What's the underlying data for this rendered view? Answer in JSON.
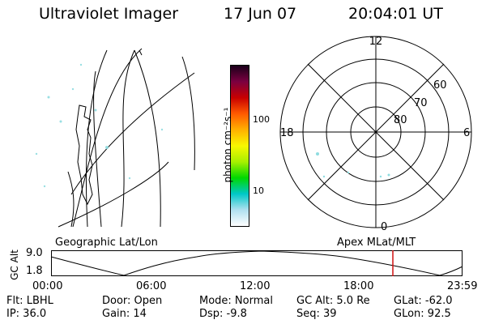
{
  "header": {
    "instrument": "Ultraviolet Imager",
    "date": "17 Jun 07",
    "time": "20:04:01 UT"
  },
  "geo_panel": {
    "label": "Geographic Lat/Lon"
  },
  "colorbar": {
    "unit_label": "photon cm⁻²s⁻¹",
    "ticks": [
      "100",
      "10"
    ],
    "colors": [
      "#1a001a",
      "#7b0040",
      "#c80000",
      "#ff5a00",
      "#ffb000",
      "#f8f800",
      "#a8f000",
      "#00d800",
      "#00c8c8",
      "#b0e0f0",
      "#ffffff"
    ]
  },
  "polar_panel": {
    "label": "Apex MLat/MLT",
    "mlt_labels": {
      "top": "12",
      "left": "18",
      "right": "6",
      "bottom": "0"
    },
    "lat_labels": [
      "60",
      "70",
      "80"
    ]
  },
  "altitude_panel": {
    "ylabel": "GC Alt",
    "y_ticks": [
      "9.0",
      "1.8"
    ],
    "x_ticks": [
      "00:00",
      "06:00",
      "12:00",
      "18:00",
      "23:59"
    ],
    "current_time_color": "#d01010"
  },
  "footer": {
    "filter": "Flt: LBHL",
    "ip": "IP: 36.0",
    "door": "Door: Open",
    "gain": "Gain: 14",
    "mode": "Mode: Normal",
    "dsp": "Dsp:    -9.8",
    "gc_alt": "GC Alt: 5.0 Re",
    "seq": "Seq: 39",
    "glat": "GLat: -62.0",
    "glon": "GLon:  92.5"
  }
}
